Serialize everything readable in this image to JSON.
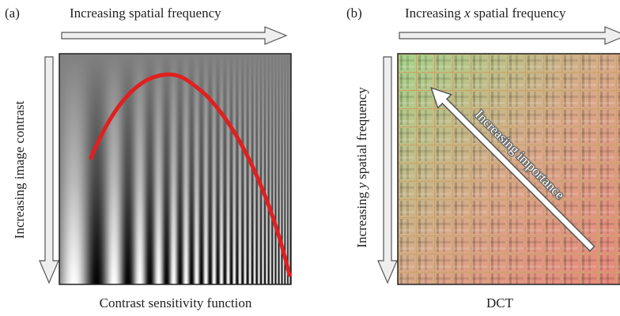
{
  "panel_a": {
    "label": "(a)",
    "x_axis": "Increasing spatial frequency",
    "y_axis": "Increasing  image contrast",
    "caption": "Contrast sensitivity function"
  },
  "panel_b": {
    "label": "(b)",
    "x_axis": [
      "Increasing ",
      "x",
      " spatial frequency"
    ],
    "y_axis": [
      "Increasing ",
      "y",
      " spatial frequency"
    ],
    "arrow_label": "Increasing importance",
    "caption": "DCT"
  }
}
